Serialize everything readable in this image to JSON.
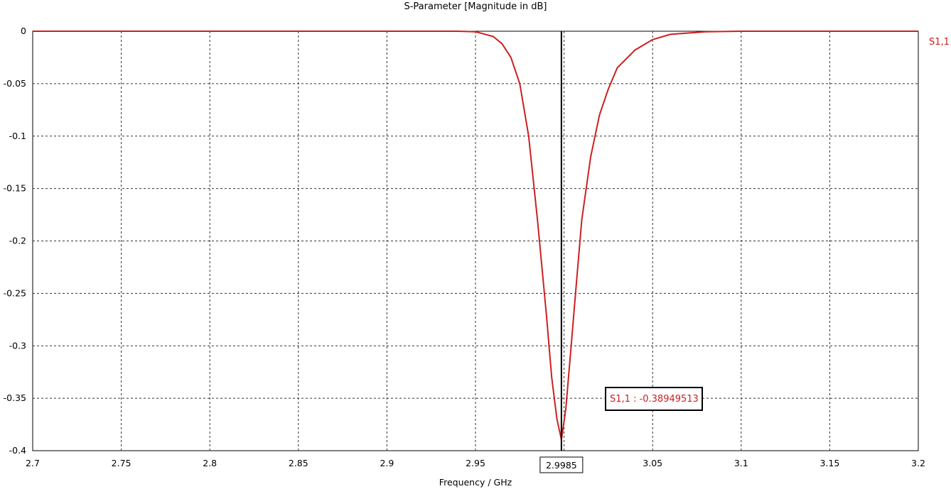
{
  "chart_data": {
    "type": "line",
    "title": "S-Parameter [Magnitude in dB]",
    "xlabel": "Frequency / GHz",
    "ylabel": "",
    "xlim": [
      2.7,
      3.2
    ],
    "ylim": [
      -0.4,
      0
    ],
    "x_ticks": [
      "2.7",
      "2.75",
      "2.8",
      "2.85",
      "2.9",
      "2.95",
      "3",
      "3.05",
      "3.1",
      "3.15",
      "3.2"
    ],
    "x_tick_values": [
      2.7,
      2.75,
      2.8,
      2.85,
      2.9,
      2.95,
      3.0,
      3.05,
      3.1,
      3.15,
      3.2
    ],
    "y_ticks": [
      "0",
      "-0.05",
      "-0.1",
      "-0.15",
      "-0.2",
      "-0.25",
      "-0.3",
      "-0.35",
      "-0.4"
    ],
    "y_tick_values": [
      0,
      -0.05,
      -0.1,
      -0.15,
      -0.2,
      -0.25,
      -0.3,
      -0.35,
      -0.4
    ],
    "grid": true,
    "series": [
      {
        "name": "S1,1",
        "color": "#cc2020",
        "x": [
          2.7,
          2.8,
          2.9,
          2.92,
          2.94,
          2.95,
          2.96,
          2.965,
          2.97,
          2.975,
          2.98,
          2.985,
          2.99,
          2.993,
          2.996,
          2.9985,
          3.001,
          3.004,
          3.007,
          3.01,
          3.015,
          3.02,
          3.025,
          3.03,
          3.04,
          3.05,
          3.06,
          3.08,
          3.1,
          3.15,
          3.2
        ],
        "y": [
          0,
          0,
          0,
          0,
          0,
          -0.0005,
          -0.005,
          -0.012,
          -0.025,
          -0.05,
          -0.1,
          -0.18,
          -0.27,
          -0.33,
          -0.37,
          -0.3895,
          -0.36,
          -0.3,
          -0.24,
          -0.18,
          -0.12,
          -0.08,
          -0.055,
          -0.035,
          -0.018,
          -0.008,
          -0.003,
          -0.0005,
          0,
          0,
          0
        ]
      }
    ],
    "marker": {
      "x_label": "2.9985",
      "x": 2.9985,
      "label": "S1,1 : -0.38949513"
    }
  }
}
